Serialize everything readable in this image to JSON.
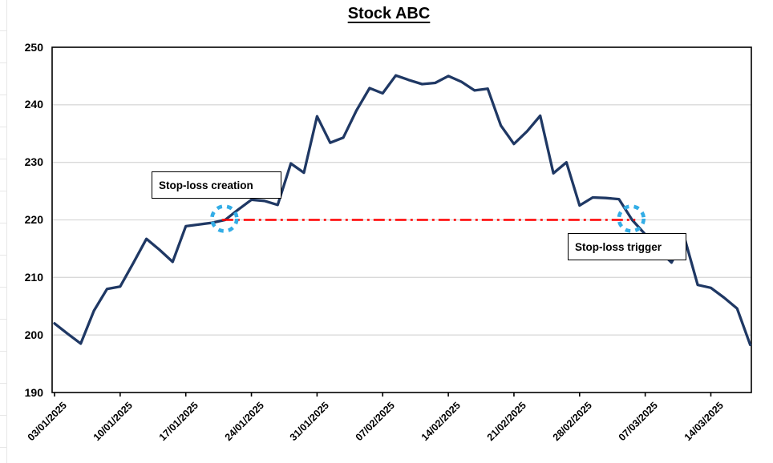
{
  "title": {
    "text": "Stock ABC"
  },
  "annotations": {
    "creation_label": "Stop-loss creation",
    "trigger_label": "Stop-loss trigger"
  },
  "colors": {
    "price_line": "#1F3864",
    "stop_line": "#FF0000",
    "circle": "#33ADE6",
    "gridline": "#D9D9D9",
    "axis": "#000000"
  },
  "chart_data": {
    "type": "line",
    "title": "Stock ABC",
    "grid": "horizontal",
    "legend": "none",
    "ylim": [
      190,
      250
    ],
    "yticks": [
      190,
      200,
      210,
      220,
      230,
      240,
      250
    ],
    "xtick_every": 5,
    "x": [
      "03/01/2025",
      "06/01/2025",
      "07/01/2025",
      "08/01/2025",
      "09/01/2025",
      "10/01/2025",
      "13/01/2025",
      "14/01/2025",
      "15/01/2025",
      "16/01/2025",
      "17/01/2025",
      "20/01/2025",
      "21/01/2025",
      "22/01/2025",
      "23/01/2025",
      "24/01/2025",
      "27/01/2025",
      "28/01/2025",
      "29/01/2025",
      "30/01/2025",
      "31/01/2025",
      "03/02/2025",
      "04/02/2025",
      "05/02/2025",
      "06/02/2025",
      "07/02/2025",
      "10/02/2025",
      "11/02/2025",
      "12/02/2025",
      "13/02/2025",
      "14/02/2025",
      "17/02/2025",
      "18/02/2025",
      "19/02/2025",
      "20/02/2025",
      "21/02/2025",
      "24/02/2025",
      "25/02/2025",
      "26/02/2025",
      "27/02/2025",
      "28/02/2025",
      "03/03/2025",
      "04/03/2025",
      "05/03/2025",
      "06/03/2025",
      "07/03/2025",
      "10/03/2025",
      "11/03/2025",
      "12/03/2025",
      "13/03/2025",
      "14/03/2025",
      "17/03/2025",
      "18/03/2025",
      "19/03/2025"
    ],
    "series": [
      {
        "name": "Stock ABC",
        "values": [
          202,
          200.2,
          198.5,
          204.2,
          208,
          208.4,
          212.5,
          216.7,
          214.8,
          212.7,
          218.9,
          219.2,
          219.5,
          220,
          221.8,
          223.5,
          223.3,
          222.6,
          229.8,
          228.2,
          238,
          233.4,
          234.3,
          239,
          242.9,
          242,
          245.1,
          244.3,
          243.6,
          243.8,
          245,
          244,
          242.5,
          242.8,
          236.4,
          233.2,
          235.4,
          238.1,
          228.1,
          230,
          222.5,
          223.9,
          223.8,
          223.6,
          220,
          217.5,
          214.8,
          212.6,
          216.8,
          208.7,
          208.2,
          206.5,
          204.6,
          198.3
        ]
      }
    ],
    "stop_loss": {
      "level": 220,
      "start_date": "22/01/2025",
      "end_date": "06/03/2025",
      "line_style": "dash-dot"
    }
  }
}
